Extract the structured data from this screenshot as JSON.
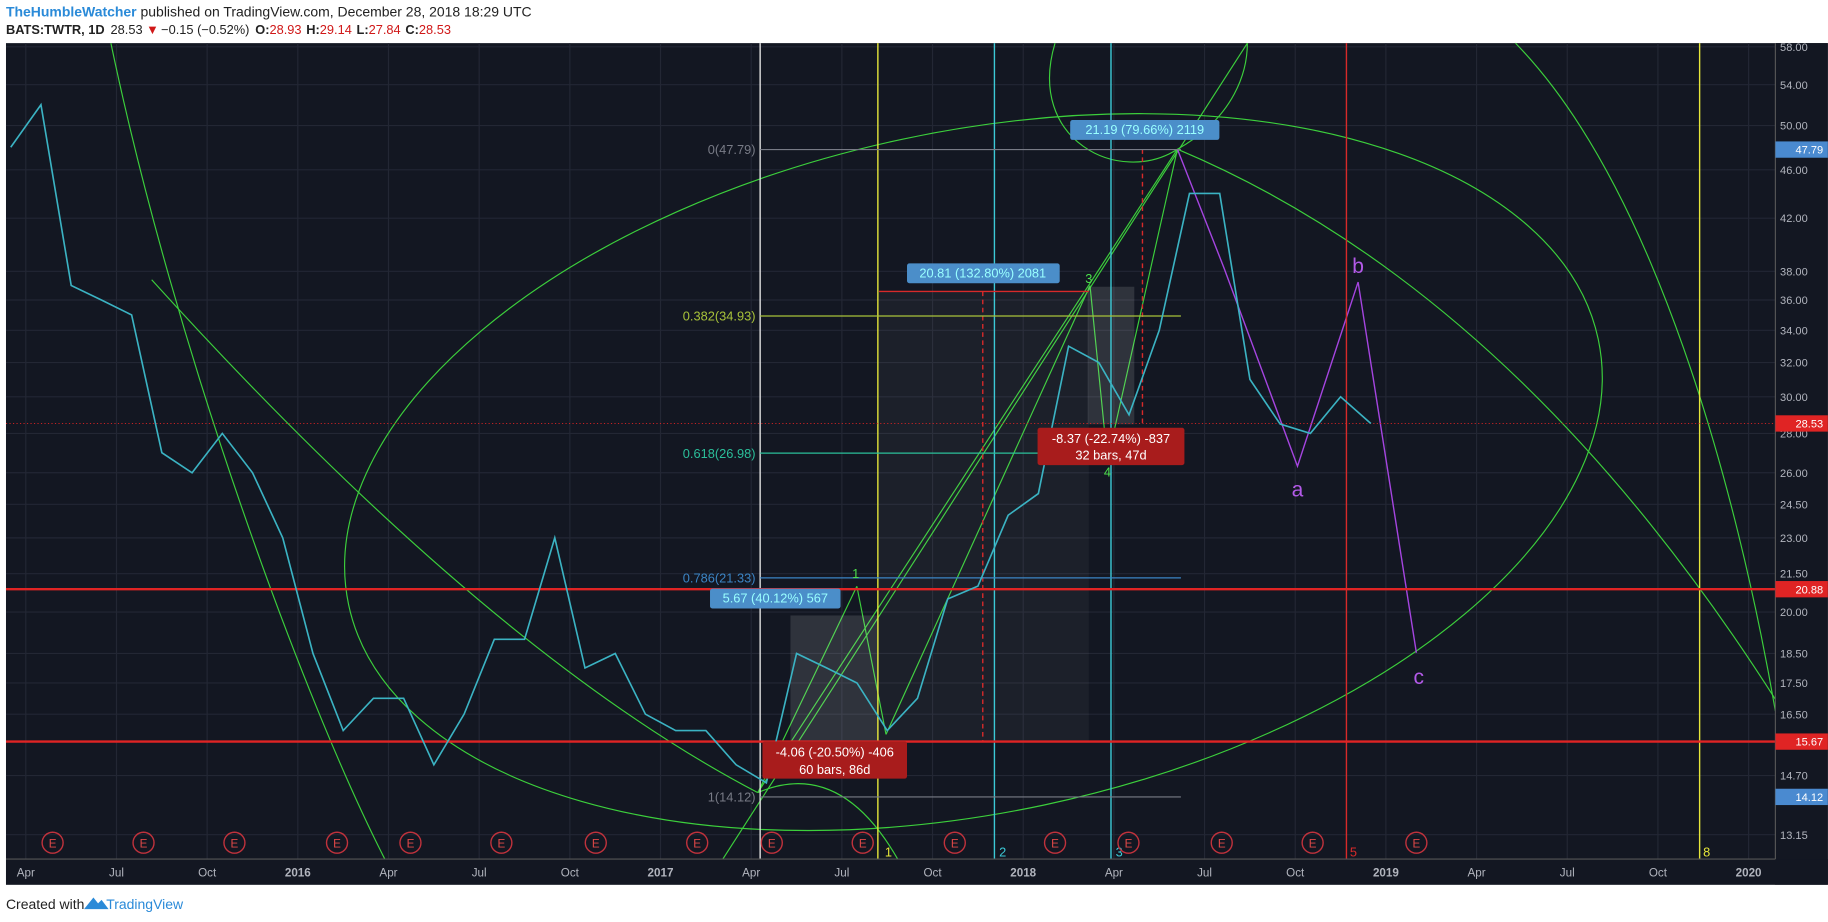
{
  "header": {
    "author": "TheHumbleWatcher",
    "published": " published on TradingView.com, December 28, 2018 18:29 UTC",
    "symbol": "BATS:TWTR, 1D",
    "last": "28.53",
    "change": "−0.15 (−0.52%)",
    "open_label": "O:",
    "open": "28.93",
    "high_label": "H:",
    "high": "29.14",
    "low_label": "L:",
    "low": "27.84",
    "close_label": "C:",
    "close": "28.53"
  },
  "footer": {
    "created": "Created with",
    "brand": "TradingView"
  },
  "chart_data": {
    "type": "line",
    "log": true,
    "ylim": [
      12.56,
      58.4
    ],
    "yticks": [
      {
        "value": 58,
        "label": "58.00"
      },
      {
        "value": 54,
        "label": "54.00"
      },
      {
        "value": 50,
        "label": "50.00"
      },
      {
        "value": 46,
        "label": "46.00"
      },
      {
        "value": 42,
        "label": "42.00"
      },
      {
        "value": 38,
        "label": "38.00"
      },
      {
        "value": 36,
        "label": "36.00"
      },
      {
        "value": 34,
        "label": "34.00"
      },
      {
        "value": 32,
        "label": "32.00"
      },
      {
        "value": 30,
        "label": "30.00"
      },
      {
        "value": 28,
        "label": "28.00"
      },
      {
        "value": 26,
        "label": "26.00"
      },
      {
        "value": 24.5,
        "label": "24.50"
      },
      {
        "value": 23,
        "label": "23.00"
      },
      {
        "value": 21.5,
        "label": "21.50"
      },
      {
        "value": 20,
        "label": "20.00"
      },
      {
        "value": 18.5,
        "label": "18.50"
      },
      {
        "value": 17.5,
        "label": "17.50"
      },
      {
        "value": 16.5,
        "label": "16.50"
      },
      {
        "value": 14.7,
        "label": "14.70"
      },
      {
        "value": 13.15,
        "label": "13.15"
      }
    ],
    "xticks": [
      {
        "value": "2015-04",
        "label": "Apr"
      },
      {
        "value": "2015-07",
        "label": "Jul"
      },
      {
        "value": "2015-10",
        "label": "Oct"
      },
      {
        "value": "2016-01",
        "label": "2016"
      },
      {
        "value": "2016-04",
        "label": "Apr"
      },
      {
        "value": "2016-07",
        "label": "Jul"
      },
      {
        "value": "2016-10",
        "label": "Oct"
      },
      {
        "value": "2017-01",
        "label": "2017"
      },
      {
        "value": "2017-04",
        "label": "Apr"
      },
      {
        "value": "2017-07",
        "label": "Jul"
      },
      {
        "value": "2017-10",
        "label": "Oct"
      },
      {
        "value": "2018-01",
        "label": "2018"
      },
      {
        "value": "2018-04",
        "label": "Apr"
      },
      {
        "value": "2018-07",
        "label": "Jul"
      },
      {
        "value": "2018-10",
        "label": "Oct"
      },
      {
        "value": "2019-01",
        "label": "2019"
      },
      {
        "value": "2019-04",
        "label": "Apr"
      },
      {
        "value": "2019-07",
        "label": "Jul"
      },
      {
        "value": "2019-10",
        "label": "Oct"
      },
      {
        "value": "2020-01",
        "label": "2020"
      }
    ],
    "series": [
      {
        "name": "TWTR",
        "color": "#3bb3c3",
        "x": [
          "2015-03",
          "2015-04",
          "2015-05",
          "2015-06",
          "2015-07",
          "2015-08",
          "2015-09",
          "2015-10",
          "2015-11",
          "2015-12",
          "2016-01",
          "2016-02",
          "2016-03",
          "2016-04",
          "2016-05",
          "2016-06",
          "2016-07",
          "2016-08",
          "2016-09",
          "2016-10",
          "2016-11",
          "2016-12",
          "2017-01",
          "2017-02",
          "2017-03",
          "2017-04",
          "2017-05",
          "2017-06",
          "2017-07",
          "2017-08",
          "2017-09",
          "2017-10",
          "2017-11",
          "2017-12",
          "2018-01",
          "2018-02",
          "2018-03",
          "2018-04",
          "2018-05",
          "2018-06",
          "2018-07",
          "2018-08",
          "2018-09",
          "2018-10",
          "2018-11",
          "2018-12"
        ],
        "values": [
          48,
          52,
          37,
          36,
          35,
          27,
          26,
          28,
          26,
          23,
          18.5,
          16,
          17,
          17,
          15,
          16.5,
          19,
          19,
          23,
          18,
          18.5,
          16.5,
          16,
          16,
          15,
          14.5,
          18.5,
          18,
          17.5,
          16,
          17,
          20.5,
          21,
          24,
          25,
          33,
          32,
          29,
          34,
          44,
          44,
          31,
          28.5,
          28,
          30,
          28.53
        ]
      }
    ],
    "price_tags": {
      "values": [
        47.79,
        28.53,
        20.88,
        15.67,
        14.12
      ],
      "colors": [
        "#4a8ad0",
        "#e02424",
        "#e02424",
        "#e02424",
        "#4a8ad0"
      ]
    },
    "fib": {
      "labels": [
        "0(47.79)",
        "0.382(34.93)",
        "0.618(26.98)",
        "0.786(21.33)",
        "1(14.12)"
      ],
      "prices": [
        47.79,
        34.93,
        26.98,
        21.33,
        14.12
      ],
      "colors": [
        "#787b86",
        "#a8c23a",
        "#2bbf9a",
        "#3b84c4",
        "#787b86"
      ]
    },
    "measures": [
      "5.67 (40.12%) 567",
      "20.81 (132.80%) 2081",
      "21.19 (79.66%) 2119",
      "-4.06 (-20.50%) -406",
      "60 bars, 86d",
      "-8.37 (-22.74%) -837",
      "32 bars, 47d"
    ],
    "waves": [
      "a",
      "b",
      "c",
      "1",
      "3",
      "4"
    ],
    "cycle_numbers": [
      "1",
      "2",
      "3",
      "5",
      "8"
    ],
    "earnings": "E"
  }
}
